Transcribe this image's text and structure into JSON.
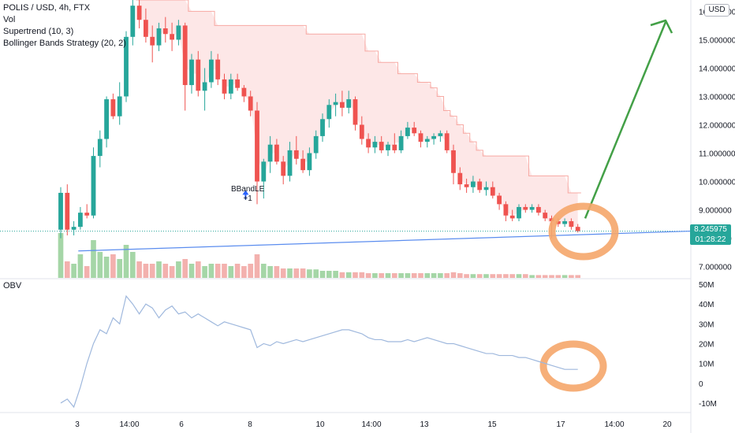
{
  "legend": {
    "symbol": "POLIS / USD, 4h, FTX",
    "vol": "Vol",
    "supertrend": "Supertrend (10, 3)",
    "bollinger": "Bollinger Bands Strategy (20, 2)"
  },
  "currency": "USD",
  "last_price": {
    "value": "8.245975",
    "countdown": "01:28:22"
  },
  "obv_label": "OBV",
  "signal": {
    "name": "BBandLE",
    "qty": "+1"
  },
  "colors": {
    "up": "#26a69a",
    "down": "#ef5350",
    "supertrend": "#f7a9a3",
    "trendline": "#5b8def",
    "arrow": "#43a047",
    "circle": "#f5a66a",
    "obv": "#9fb8dd"
  },
  "chart_data": [
    {
      "type": "candlestick",
      "title": "POLIS / USD, 4h, FTX",
      "x_ticks": [
        "3",
        "14:00",
        "6",
        "8",
        "10",
        "14:00",
        "13",
        "15",
        "17",
        "14:00",
        "20"
      ],
      "y_ticks": [
        "7.000000",
        "8.000000",
        "9.000000",
        "10.000000",
        "11.000000",
        "12.000000",
        "13.000000",
        "14.000000",
        "15.000000",
        "16.000000"
      ],
      "ylim": [
        6.6,
        16.4
      ],
      "ohlc": [
        [
          8.3,
          9.8,
          8.0,
          9.6
        ],
        [
          9.6,
          9.9,
          8.1,
          8.3
        ],
        [
          8.3,
          8.6,
          8.1,
          8.4
        ],
        [
          8.4,
          9.1,
          8.3,
          8.9
        ],
        [
          8.9,
          9.2,
          8.7,
          8.8
        ],
        [
          8.8,
          11.2,
          8.7,
          10.9
        ],
        [
          10.9,
          11.8,
          10.5,
          11.5
        ],
        [
          11.5,
          13.0,
          11.2,
          12.9
        ],
        [
          12.9,
          13.1,
          12.2,
          12.3
        ],
        [
          12.3,
          13.5,
          12.0,
          13.0
        ],
        [
          13.0,
          15.3,
          12.8,
          15.1
        ],
        [
          15.1,
          16.4,
          14.8,
          16.2
        ],
        [
          16.2,
          16.4,
          15.4,
          15.7
        ],
        [
          15.7,
          16.1,
          14.9,
          15.1
        ],
        [
          15.1,
          15.5,
          14.2,
          14.8
        ],
        [
          14.8,
          15.6,
          14.6,
          15.4
        ],
        [
          15.4,
          15.8,
          14.9,
          15.2
        ],
        [
          15.2,
          15.6,
          14.6,
          15.0
        ],
        [
          15.0,
          15.7,
          14.8,
          15.5
        ],
        [
          15.5,
          15.6,
          12.5,
          13.4
        ],
        [
          13.4,
          14.5,
          13.1,
          14.3
        ],
        [
          14.3,
          14.6,
          13.0,
          13.2
        ],
        [
          13.2,
          14.0,
          12.5,
          13.5
        ],
        [
          13.5,
          14.6,
          13.3,
          14.3
        ],
        [
          14.3,
          14.5,
          13.4,
          13.6
        ],
        [
          13.6,
          13.8,
          12.9,
          13.1
        ],
        [
          13.1,
          13.8,
          12.9,
          13.6
        ],
        [
          13.6,
          13.8,
          13.2,
          13.3
        ],
        [
          13.3,
          13.4,
          12.8,
          13.0
        ],
        [
          13.0,
          13.2,
          12.3,
          12.5
        ],
        [
          12.5,
          12.8,
          9.2,
          10.0
        ],
        [
          10.0,
          10.8,
          9.4,
          10.7
        ],
        [
          10.7,
          11.6,
          10.3,
          11.3
        ],
        [
          11.3,
          11.5,
          10.6,
          10.7
        ],
        [
          10.7,
          10.9,
          9.9,
          10.2
        ],
        [
          10.2,
          11.4,
          10.0,
          11.1
        ],
        [
          11.1,
          11.6,
          10.6,
          10.8
        ],
        [
          10.8,
          11.1,
          10.3,
          10.4
        ],
        [
          10.4,
          11.2,
          10.2,
          11.0
        ],
        [
          11.0,
          11.8,
          10.8,
          11.6
        ],
        [
          11.6,
          12.4,
          11.4,
          12.2
        ],
        [
          12.2,
          12.9,
          11.9,
          12.7
        ],
        [
          12.7,
          13.1,
          12.3,
          12.8
        ],
        [
          12.8,
          13.2,
          12.3,
          12.6
        ],
        [
          12.6,
          13.2,
          12.4,
          12.9
        ],
        [
          12.9,
          13.0,
          11.8,
          12.0
        ],
        [
          12.0,
          12.3,
          11.3,
          11.5
        ],
        [
          11.5,
          11.7,
          11.0,
          11.2
        ],
        [
          11.2,
          11.6,
          11.0,
          11.4
        ],
        [
          11.4,
          11.6,
          11.0,
          11.1
        ],
        [
          11.1,
          11.4,
          10.9,
          11.3
        ],
        [
          11.3,
          11.7,
          11.0,
          11.1
        ],
        [
          11.1,
          11.8,
          11.0,
          11.6
        ],
        [
          11.6,
          12.1,
          11.5,
          11.9
        ],
        [
          11.9,
          12.1,
          11.6,
          11.7
        ],
        [
          11.7,
          11.8,
          11.2,
          11.4
        ],
        [
          11.4,
          11.6,
          11.2,
          11.5
        ],
        [
          11.5,
          11.7,
          11.3,
          11.6
        ],
        [
          11.6,
          11.8,
          11.4,
          11.7
        ],
        [
          11.7,
          11.8,
          11.0,
          11.1
        ],
        [
          11.1,
          11.3,
          9.9,
          10.3
        ],
        [
          10.3,
          10.5,
          9.7,
          9.9
        ],
        [
          9.9,
          10.1,
          9.6,
          9.8
        ],
        [
          9.8,
          10.2,
          9.6,
          10.0
        ],
        [
          10.0,
          10.1,
          9.6,
          9.7
        ],
        [
          9.7,
          10.0,
          9.5,
          9.8
        ],
        [
          9.8,
          10.0,
          9.4,
          9.5
        ],
        [
          9.5,
          9.6,
          9.0,
          9.2
        ],
        [
          9.2,
          9.3,
          8.6,
          8.8
        ],
        [
          8.8,
          9.0,
          8.6,
          8.7
        ],
        [
          8.7,
          9.2,
          8.6,
          9.1
        ],
        [
          9.1,
          9.2,
          8.9,
          9.0
        ],
        [
          9.0,
          9.2,
          8.9,
          9.1
        ],
        [
          9.1,
          9.2,
          8.8,
          8.9
        ],
        [
          8.9,
          9.0,
          8.6,
          8.7
        ],
        [
          8.7,
          8.8,
          8.0,
          8.6
        ],
        [
          8.6,
          8.7,
          8.4,
          8.5
        ],
        [
          8.5,
          8.7,
          8.4,
          8.6
        ],
        [
          8.6,
          8.7,
          8.3,
          8.4
        ],
        [
          8.4,
          8.5,
          8.2,
          8.25
        ]
      ],
      "volume": [
        0.95,
        0.35,
        0.3,
        0.5,
        0.25,
        0.8,
        0.55,
        0.45,
        0.5,
        0.4,
        0.7,
        0.55,
        0.35,
        0.3,
        0.3,
        0.35,
        0.3,
        0.25,
        0.35,
        0.4,
        0.3,
        0.35,
        0.25,
        0.3,
        0.3,
        0.3,
        0.25,
        0.3,
        0.25,
        0.3,
        0.5,
        0.3,
        0.25,
        0.25,
        0.2,
        0.2,
        0.2,
        0.2,
        0.18,
        0.18,
        0.15,
        0.15,
        0.15,
        0.12,
        0.12,
        0.12,
        0.12,
        0.1,
        0.1,
        0.1,
        0.1,
        0.1,
        0.1,
        0.1,
        0.1,
        0.1,
        0.1,
        0.1,
        0.1,
        0.1,
        0.12,
        0.1,
        0.08,
        0.08,
        0.08,
        0.08,
        0.08,
        0.08,
        0.08,
        0.08,
        0.08,
        0.08,
        0.06,
        0.06,
        0.06,
        0.06,
        0.06,
        0.06,
        0.06,
        0.06
      ],
      "supertrend": [
        null,
        null,
        null,
        null,
        null,
        null,
        null,
        null,
        null,
        null,
        null,
        null,
        16.4,
        16.4,
        16.4,
        16.4,
        16.4,
        16.4,
        16.4,
        16.4,
        16.0,
        16.0,
        16.0,
        16.0,
        15.5,
        15.5,
        15.5,
        15.5,
        15.5,
        15.5,
        15.5,
        15.5,
        15.5,
        15.5,
        15.5,
        15.5,
        15.5,
        15.5,
        15.2,
        15.2,
        15.2,
        15.2,
        15.2,
        15.2,
        15.2,
        15.2,
        15.2,
        14.6,
        14.6,
        14.2,
        14.2,
        14.2,
        13.8,
        13.8,
        13.8,
        13.5,
        13.5,
        13.3,
        13.0,
        12.5,
        12.3,
        12.0,
        11.7,
        11.4,
        11.1,
        10.9,
        10.9,
        10.9,
        10.9,
        10.9,
        10.9,
        10.9,
        10.2,
        10.2,
        10.2,
        10.2,
        10.2,
        10.2,
        9.6,
        9.6
      ],
      "trendline": {
        "from": [
          1,
          7.55
        ],
        "to": [
          100,
          8.25
        ]
      }
    },
    {
      "type": "line",
      "title": "OBV",
      "y_ticks": [
        "-10M",
        "0",
        "10M",
        "20M",
        "30M",
        "40M",
        "50M"
      ],
      "ylim": [
        -14,
        52
      ],
      "values": [
        -10,
        -8,
        -12,
        -2,
        10,
        20,
        27,
        25,
        33,
        30,
        44,
        40,
        35,
        40,
        38,
        33,
        37,
        39,
        35,
        36,
        33,
        35,
        33,
        31,
        29,
        31,
        30,
        29,
        28,
        27,
        18,
        20,
        19,
        21,
        20,
        21,
        22,
        21,
        22,
        23,
        24,
        25,
        26,
        27,
        27,
        26,
        25,
        23,
        22,
        22,
        21,
        21,
        21,
        22,
        21,
        22,
        23,
        22,
        21,
        20,
        20,
        19,
        18,
        17,
        16,
        15,
        15,
        14,
        14,
        14,
        13,
        13,
        12,
        11,
        10,
        9,
        8,
        7,
        7,
        7
      ]
    }
  ]
}
